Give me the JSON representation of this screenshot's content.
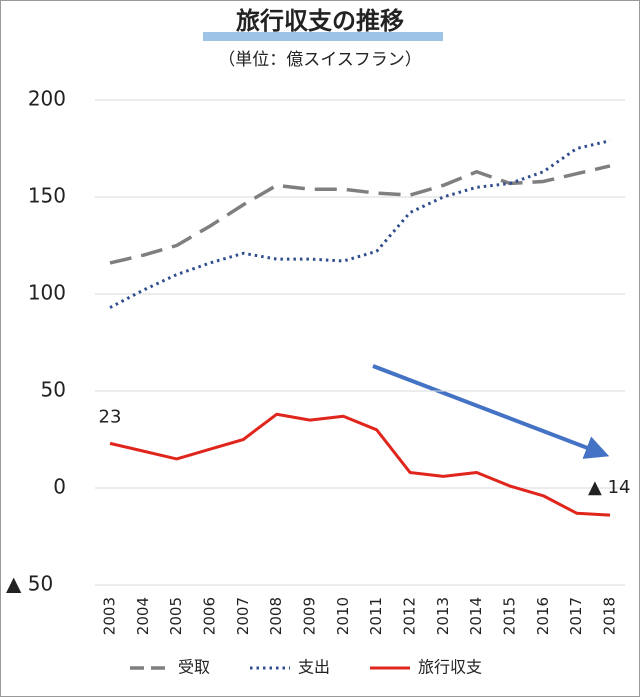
{
  "chart_data": {
    "type": "line",
    "title": "旅行収支の推移",
    "subtitle": "（単位：億スイスフラン）",
    "categories": [
      "2003",
      "2004",
      "2005",
      "2006",
      "2007",
      "2008",
      "2009",
      "2010",
      "2011",
      "2012",
      "2013",
      "2014",
      "2015",
      "2016",
      "2017",
      "2018"
    ],
    "series": [
      {
        "name": "受取",
        "color": "#7f7f7f",
        "style": "dashed",
        "values": [
          116,
          120,
          125,
          135,
          146,
          156,
          154,
          154,
          152,
          151,
          156,
          163,
          157,
          158,
          162,
          166
        ]
      },
      {
        "name": "支出",
        "color": "#2f4d8c",
        "style": "dotted",
        "values": [
          93,
          102,
          110,
          116,
          121,
          118,
          118,
          117,
          122,
          142,
          150,
          155,
          157,
          163,
          175,
          179
        ]
      },
      {
        "name": "旅行収支",
        "color": "#e0261c",
        "style": "solid",
        "values": [
          23,
          19,
          15,
          20,
          25,
          38,
          35,
          37,
          30,
          8,
          6,
          8,
          1,
          -4,
          -13,
          -14
        ],
        "value_labels": [
          "23",
          null,
          null,
          null,
          null,
          null,
          null,
          null,
          null,
          null,
          null,
          null,
          null,
          null,
          null,
          "▲ 14"
        ]
      }
    ],
    "ylim": [
      -50,
      200
    ],
    "yticks": [
      {
        "value": -50,
        "label": "▲ 50"
      },
      0,
      50,
      100,
      150,
      200
    ],
    "grid": true,
    "legend": "bottom"
  }
}
